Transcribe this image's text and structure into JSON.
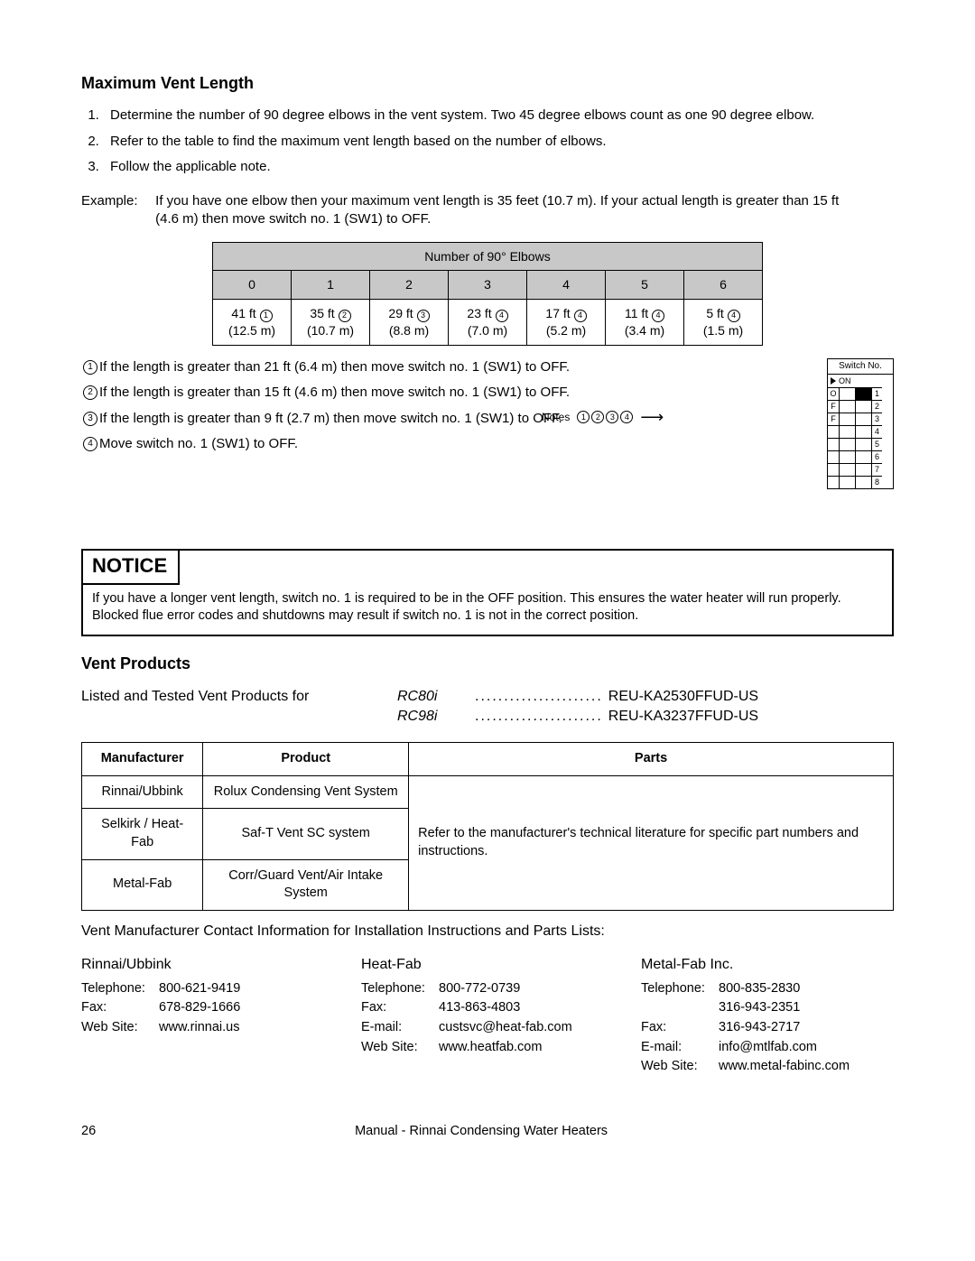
{
  "title": "Maximum Vent Length",
  "steps": [
    "Determine the number of 90 degree elbows in the vent system.  Two 45 degree elbows count as one 90 degree elbow.",
    "Refer to the table to find the maximum vent length based on the number of elbows.",
    "Follow the applicable note."
  ],
  "example": {
    "label": "Example:",
    "text": "If you have one elbow then your maximum vent length is 35 feet (10.7 m).  If your actual length is greater than 15 ft (4.6 m) then move switch no. 1 (SW1) to OFF."
  },
  "elbow_table": {
    "header": "Number of 90° Elbows",
    "cols": [
      "0",
      "1",
      "2",
      "3",
      "4",
      "5",
      "6"
    ],
    "ft": [
      "41 ft",
      "35 ft",
      "29 ft",
      "23 ft",
      "17 ft",
      "11 ft",
      "5 ft"
    ],
    "note_idx": [
      "1",
      "2",
      "3",
      "4",
      "4",
      "4",
      "4"
    ],
    "m": [
      "(12.5 m)",
      "(10.7 m)",
      "(8.8 m)",
      "(7.0 m)",
      "(5.2 m)",
      "(3.4 m)",
      "(1.5 m)"
    ],
    "bg_header": "#c8c8c8",
    "border": "#000000"
  },
  "notes": [
    "If the length is greater than 21 ft (6.4 m) then move switch no. 1 (SW1) to OFF.",
    "If the length is greater than 15 ft (4.6 m) then move switch no. 1 (SW1) to OFF.",
    "If the length is greater than 9 ft (2.7 m) then move switch no. 1 (SW1) to OFF.",
    "Move switch no. 1 (SW1) to OFF."
  ],
  "notes_label": "Notes",
  "switch": {
    "title": "Switch No.",
    "on": "ON",
    "off": "OFF",
    "rows": 8,
    "sw1_on_col": 2
  },
  "notice": {
    "head": "NOTICE",
    "body": "If you have a longer vent length, switch no. 1 is required to be in the  OFF position.  This ensures the water heater will run properly.  Blocked flue error codes and shutdowns may result if switch no. 1 is not in the correct position."
  },
  "vent_section_title": "Vent Products",
  "listed": {
    "lead": "Listed and Tested Vent Products for",
    "rows": [
      {
        "model": "RC80i",
        "dots": "......................",
        "code": "REU-KA2530FFUD-US"
      },
      {
        "model": "RC98i",
        "dots": "......................",
        "code": "REU-KA3237FFUD-US"
      }
    ]
  },
  "prod_table": {
    "headers": [
      "Manufacturer",
      "Product",
      "Parts"
    ],
    "rows": [
      {
        "mfr": "Rinnai/Ubbink",
        "prod": "Rolux Condensing Vent System"
      },
      {
        "mfr": "Selkirk / Heat-Fab",
        "prod": "Saf-T Vent SC system"
      },
      {
        "mfr": "Metal-Fab",
        "prod": "Corr/Guard Vent/Air Intake System"
      }
    ],
    "parts_text": "Refer to the manufacturer's technical literature for specific part numbers and instructions."
  },
  "contact_head": "Vent Manufacturer Contact Information for Installation Instructions and Parts Lists:",
  "contacts": [
    {
      "name": "Rinnai/Ubbink",
      "lines": [
        {
          "k": "Telephone:",
          "v": "800-621-9419"
        },
        {
          "k": "Fax:",
          "v": "678-829-1666"
        },
        {
          "k": "Web Site:",
          "v": "www.rinnai.us"
        }
      ]
    },
    {
      "name": "Heat-Fab",
      "lines": [
        {
          "k": "Telephone:",
          "v": "800-772-0739"
        },
        {
          "k": "Fax:",
          "v": "413-863-4803"
        },
        {
          "k": "E-mail:",
          "v": "custsvc@heat-fab.com"
        },
        {
          "k": "Web Site:",
          "v": "www.heatfab.com"
        }
      ]
    },
    {
      "name": "Metal-Fab Inc.",
      "lines": [
        {
          "k": "Telephone:",
          "v": "800-835-2830"
        },
        {
          "k": "",
          "v": "316-943-2351"
        },
        {
          "k": "Fax:",
          "v": "316-943-2717"
        },
        {
          "k": "E-mail:",
          "v": "info@mtlfab.com"
        },
        {
          "k": "Web Site:",
          "v": "www.metal-fabinc.com"
        }
      ]
    }
  ],
  "footer": {
    "page": "26",
    "title": "Manual - Rinnai Condensing Water Heaters"
  }
}
